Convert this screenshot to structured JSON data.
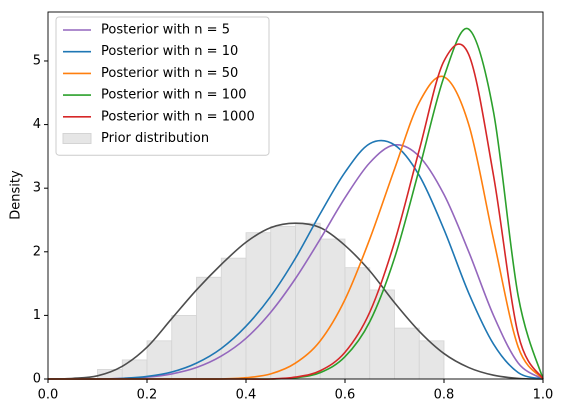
{
  "chart_data": {
    "type": "line",
    "y_label": "Density",
    "x": [
      0,
      0.05,
      0.1,
      0.15,
      0.2,
      0.25,
      0.3,
      0.35,
      0.4,
      0.45,
      0.5,
      0.55,
      0.6,
      0.65,
      0.7,
      0.75,
      0.8,
      0.85,
      0.9,
      0.95,
      1
    ],
    "series": [
      {
        "name": "Posterior with n = 5",
        "color": "#9467bd",
        "values": [
          0,
          0,
          0,
          0.01,
          0.03,
          0.08,
          0.18,
          0.36,
          0.64,
          1.05,
          1.58,
          2.2,
          2.85,
          3.4,
          3.68,
          3.5,
          2.9,
          2.0,
          1.0,
          0.25,
          0
        ]
      },
      {
        "name": "Posterior with n = 10",
        "color": "#1f77b4",
        "values": [
          0,
          0,
          0,
          0.01,
          0.04,
          0.11,
          0.25,
          0.48,
          0.83,
          1.3,
          1.9,
          2.6,
          3.25,
          3.7,
          3.68,
          3.2,
          2.35,
          1.35,
          0.55,
          0.1,
          0
        ]
      },
      {
        "name": "Posterior with n = 50",
        "color": "#ff7f0e",
        "values": [
          0,
          0,
          0,
          0,
          0,
          0,
          0,
          0,
          0.02,
          0.08,
          0.25,
          0.6,
          1.25,
          2.2,
          3.3,
          4.35,
          4.75,
          4.0,
          2.2,
          0.5,
          0
        ]
      },
      {
        "name": "Posterior with n = 100",
        "color": "#2ca02c",
        "values": [
          0,
          0,
          0,
          0,
          0,
          0,
          0,
          0,
          0,
          0,
          0.02,
          0.1,
          0.35,
          0.9,
          1.9,
          3.3,
          4.75,
          5.5,
          4.2,
          1.3,
          0
        ]
      },
      {
        "name": "Posterior with n = 1000",
        "color": "#d62728",
        "values": [
          0,
          0,
          0,
          0,
          0,
          0,
          0,
          0,
          0,
          0,
          0.03,
          0.13,
          0.42,
          1.05,
          2.15,
          3.6,
          5.0,
          5.1,
          3.2,
          0.7,
          0
        ]
      }
    ],
    "kde": {
      "color": "#4d4d4d",
      "values": [
        0,
        0.01,
        0.05,
        0.2,
        0.5,
        0.95,
        1.4,
        1.8,
        2.15,
        2.38,
        2.45,
        2.38,
        2.1,
        1.7,
        1.2,
        0.75,
        0.4,
        0.18,
        0.06,
        0.01,
        0
      ]
    },
    "histogram": {
      "name": "Prior distribution",
      "color": "#e6e6e6",
      "bins": [
        0.1,
        0.15,
        0.2,
        0.25,
        0.3,
        0.35,
        0.4,
        0.45,
        0.5,
        0.55,
        0.6,
        0.65,
        0.7,
        0.75,
        0.8
      ],
      "values": [
        0.15,
        0.3,
        0.6,
        1.0,
        1.6,
        1.9,
        2.3,
        2.4,
        2.45,
        2.2,
        1.75,
        1.4,
        0.8,
        0.6
      ]
    },
    "xlim": [
      0,
      1
    ],
    "ylim": [
      0,
      5.77
    ],
    "xticks": [
      {
        "value": 0,
        "label": "0.0"
      },
      0.2,
      0.4,
      0.6,
      0.8,
      {
        "value": 1,
        "label": "1.0"
      }
    ],
    "yticks": [
      0,
      1,
      2,
      3,
      4,
      5
    ],
    "legend": "upper-left"
  }
}
